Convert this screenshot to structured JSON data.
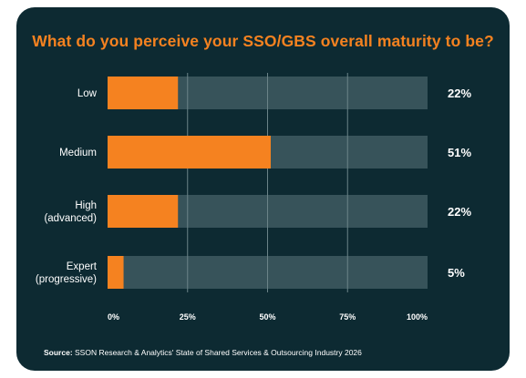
{
  "colors": {
    "background": "#0d2a32",
    "bar_fill": "#f58220",
    "bar_track": "#37535a",
    "gridline": "#6b8388",
    "text": "#ffffff",
    "title": "#f58220"
  },
  "source": {
    "prefix": "Source:",
    "text": " SSON Research & Analytics' State of Shared Services & Outsourcing Industry 2026"
  },
  "chart_data": {
    "type": "bar",
    "orientation": "horizontal",
    "title": "What do you perceive your SSO/GBS overall maturity to be?",
    "categories": [
      [
        "Low"
      ],
      [
        "Medium"
      ],
      [
        "High",
        "(advanced)"
      ],
      [
        "Expert",
        "(progressive)"
      ]
    ],
    "values": [
      22,
      51,
      22,
      5
    ],
    "value_labels": [
      "22%",
      "51%",
      "22%",
      "5%"
    ],
    "xlim": [
      0,
      100
    ],
    "xticks": [
      0,
      25,
      50,
      75,
      100
    ],
    "xtick_labels": [
      "0%",
      "25%",
      "50%",
      "75%",
      "100%"
    ],
    "grid": true,
    "xlabel": "",
    "ylabel": ""
  }
}
